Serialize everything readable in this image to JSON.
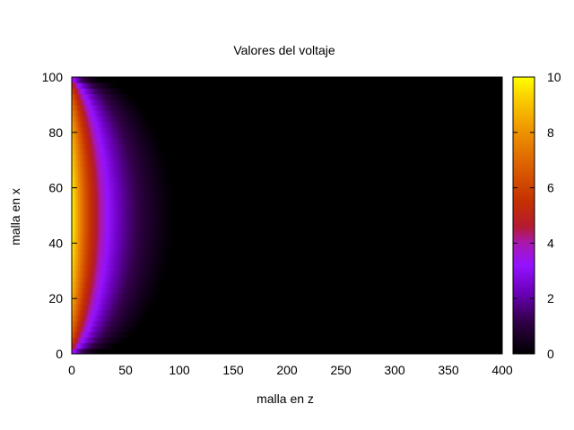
{
  "chart_data": {
    "type": "heatmap",
    "title": "Valores del voltaje",
    "xlabel": "malla en z",
    "ylabel": "malla en x",
    "xlim": [
      0,
      400
    ],
    "ylim": [
      0,
      100
    ],
    "xticks": [
      "0",
      "50",
      "100",
      "150",
      "200",
      "250",
      "300",
      "350",
      "400"
    ],
    "yticks": [
      "0",
      "20",
      "40",
      "60",
      "80",
      "100"
    ],
    "colorbar": {
      "range": [
        0,
        10
      ],
      "ticks": [
        "0",
        "2",
        "4",
        "6",
        "8",
        "10"
      ],
      "palette": [
        "#000000",
        "#3b0057",
        "#7000c8",
        "#9a10ff",
        "#b41a40",
        "#c43200",
        "#d85a00",
        "#ec8a00",
        "#f9bf00",
        "#ffff00"
      ]
    },
    "field": {
      "description_values": "voltage is 10 along x-axis boundary (z=0), decays with z; near-zero beyond z≈95",
      "boundary_value": 10,
      "decay_extent_z": 95
    },
    "grid": false
  }
}
